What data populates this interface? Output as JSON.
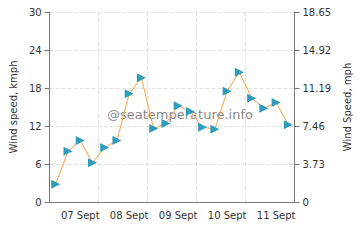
{
  "chart_data": {
    "type": "line",
    "y_label": "Wind speed, kmph",
    "y2_label": "Wind Speed, mph",
    "annotation": "@seatemperature.info",
    "categories": [
      null,
      null,
      "07 Sept",
      null,
      null,
      null,
      "08 Sept",
      null,
      null,
      null,
      "09 Sept",
      null,
      null,
      null,
      "10 Sept",
      null,
      null,
      null,
      "11 Sept",
      null
    ],
    "series": [
      {
        "color": "#f5a340",
        "marker": "arrow",
        "values": [
          2.8,
          8,
          9.7,
          6.2,
          8.6,
          9.7,
          17.1,
          19.6,
          11.6,
          12.4,
          15.2,
          14.3,
          11.8,
          11.5,
          17.5,
          20.5,
          16.4,
          14.8,
          15.7,
          12.2
        ]
      }
    ],
    "ylim": [
      0,
      30
    ],
    "yticks": [
      0,
      6,
      12,
      18,
      24,
      30
    ],
    "y2lim": [
      0,
      18.65
    ],
    "y2ticks": [
      0,
      3.73,
      7.46,
      11.19,
      14.92,
      18.65
    ],
    "grid": true
  }
}
